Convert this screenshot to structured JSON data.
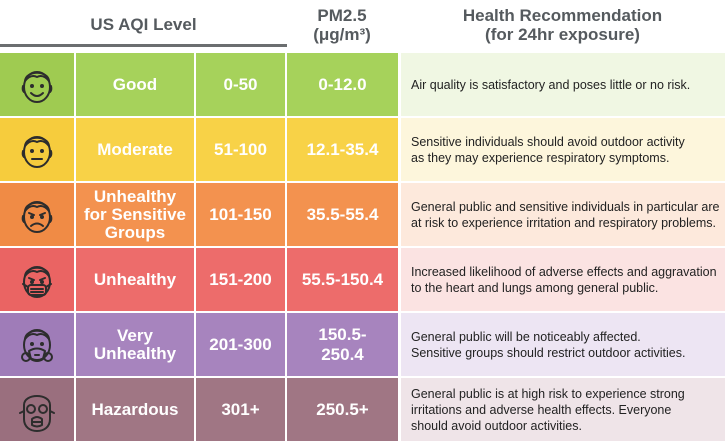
{
  "header": {
    "aqi_level": "US AQI Level",
    "pm_line1": "PM2.5",
    "pm_line2": "(μg/m³)",
    "health_line1": "Health Recommendation",
    "health_line2": "(for 24hr exposure)"
  },
  "rows": [
    {
      "level": "Good",
      "aqi": "0-50",
      "pm": "0-12.0",
      "recommendation": "Air quality is satisfactory and poses little or no risk.",
      "icon": "happy-face-icon",
      "colors": {
        "main": "#a6d25b",
        "icon": "#9fcb51",
        "rec": "#f0f7e3"
      }
    },
    {
      "level": "Moderate",
      "aqi": "51-100",
      "pm": "12.1-35.4",
      "recommendation": "Sensitive individuals should avoid outdoor activity\nas they may experience respiratory symptoms.",
      "icon": "neutral-face-icon",
      "colors": {
        "main": "#f8d247",
        "icon": "#f6cc3d",
        "rec": "#fdf6dc"
      }
    },
    {
      "level": "Unhealthy\nfor Sensitive\nGroups",
      "aqi": "101-150",
      "pm": "35.5-55.4",
      "recommendation": "General public and sensitive individuals in particular are\nat risk to experience irritation and respiratory problems.",
      "icon": "sad-face-icon",
      "colors": {
        "main": "#f3924f",
        "icon": "#f08b45",
        "rec": "#fde9dc"
      }
    },
    {
      "level": "Unhealthy",
      "aqi": "151-200",
      "pm": "55.5-150.4",
      "recommendation": "Increased likelihood of adverse effects and aggravation\nto the heart and lungs among general public.",
      "icon": "face-mask-icon",
      "colors": {
        "main": "#ed6c6b",
        "icon": "#ea6463",
        "rec": "#fbe3e2"
      }
    },
    {
      "level": "Very\nUnhealthy",
      "aqi": "201-300",
      "pm": "150.5-\n250.4",
      "recommendation": "General public will be noticeably affected.\nSensitive groups should restrict outdoor activities.",
      "icon": "respirator-mask-icon",
      "colors": {
        "main": "#a784be",
        "icon": "#9f7cb8",
        "rec": "#ede5f3"
      }
    },
    {
      "level": "Hazardous",
      "aqi": "301+",
      "pm": "250.5+",
      "recommendation": "General public is at high risk to experience strong\nirritations and adverse health effects. Everyone\nshould avoid outdoor activities.",
      "icon": "gas-mask-icon",
      "colors": {
        "main": "#a07684",
        "icon": "#9a6f7e",
        "rec": "#efe4e8"
      }
    }
  ]
}
